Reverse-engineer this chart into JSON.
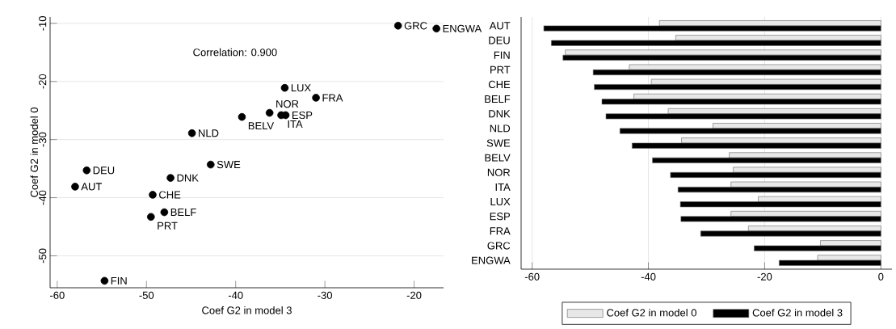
{
  "chart_data": [
    {
      "type": "scatter",
      "xlabel": "Coef G2 in model 3",
      "ylabel": "Coef G2 in model 0",
      "annotations": [
        "Correlation: 0.900"
      ],
      "x": [
        -58.0,
        -56.7,
        -54.7,
        -49.5,
        -49.3,
        -48.0,
        -47.3,
        -44.9,
        -42.8,
        -39.3,
        -36.2,
        -34.9,
        -34.5,
        -34.4,
        -31.0,
        -21.8,
        -17.5
      ],
      "values": [
        -38.1,
        -35.3,
        -54.3,
        -43.3,
        -39.5,
        -42.5,
        -36.6,
        -28.9,
        -34.3,
        -26.1,
        -25.4,
        -25.8,
        -21.1,
        -25.8,
        -22.8,
        -10.4,
        -10.9
      ],
      "value_labels": [
        "AUT",
        "DEU",
        "FIN",
        "PRT",
        "CHE",
        "BELF",
        "DNK",
        "NLD",
        "SWE",
        "BELV",
        "NOR",
        "ITA",
        "LUX",
        "ESP",
        "FRA",
        "GRC",
        "ENGWA"
      ],
      "color": "#000000",
      "xlim": [
        -60.8,
        -16.7
      ],
      "ylim": [
        -55.5,
        -8.9
      ],
      "xticks": [
        -60,
        -50,
        -40,
        -30,
        -20
      ],
      "yticks": [
        -50,
        -40,
        -30,
        -20,
        -10
      ],
      "grid": "y"
    },
    {
      "type": "bar",
      "orientation": "horizontal",
      "categories": [
        "AUT",
        "DEU",
        "FIN",
        "PRT",
        "CHE",
        "BELF",
        "DNK",
        "NLD",
        "SWE",
        "BELV",
        "NOR",
        "ITA",
        "LUX",
        "ESP",
        "FRA",
        "GRC",
        "ENGWA"
      ],
      "series": [
        {
          "name": "Coef G2 in model 0",
          "color": "#e8e8e8",
          "values": [
            -38.1,
            -35.3,
            -54.3,
            -43.3,
            -39.5,
            -42.5,
            -36.6,
            -28.9,
            -34.3,
            -26.1,
            -25.4,
            -25.8,
            -21.1,
            -25.8,
            -22.8,
            -10.4,
            -10.9
          ]
        },
        {
          "name": "Coef G2 in model 3",
          "color": "#000000",
          "values": [
            -58.0,
            -56.7,
            -54.7,
            -49.5,
            -49.3,
            -48.0,
            -47.3,
            -44.9,
            -42.8,
            -39.3,
            -36.2,
            -34.9,
            -34.5,
            -34.4,
            -31.0,
            -21.8,
            -17.5
          ]
        }
      ],
      "xlim": [
        -61.9,
        1.9
      ],
      "xticks": [
        -60,
        -40,
        -20,
        0
      ],
      "grid": "x",
      "legend": "bottom"
    }
  ]
}
